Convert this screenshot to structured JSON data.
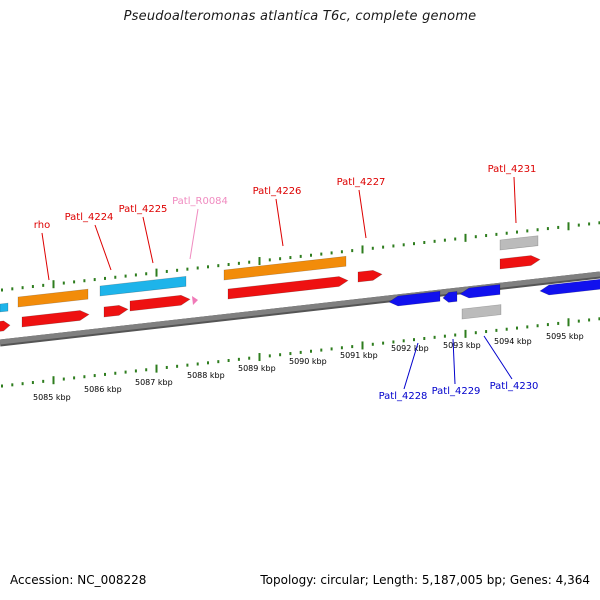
{
  "title": "Pseudoalteromonas atlantica T6c, complete genome",
  "footer": {
    "accession": "Accession: NC_008228",
    "topology": "Topology: circular; Length: 5,187,005 bp; Genes: 4,364"
  },
  "colors": {
    "backbone": "#808080",
    "tick": "#2e7d1e",
    "cds_forward": "#ee1111",
    "cds_reverse": "#1111ee",
    "gene_orange": "#f28c0a",
    "gene_cyan": "#1eb4ea",
    "gene_gray": "#bbbbbb",
    "rna": "#f07ab8",
    "label_forward": "#dd0000",
    "label_reverse": "#0000cc",
    "label_rna": "#f08bc0"
  },
  "scale": {
    "tick_labels": [
      "5085 kbp",
      "5086 kbp",
      "5087 kbp",
      "5088 kbp",
      "5089 kbp",
      "5090 kbp",
      "5091 kbp",
      "5092 kbp",
      "5093 kbp",
      "5094 kbp",
      "5095 kbp"
    ]
  },
  "labels": [
    {
      "text": "rho",
      "kind": "forward"
    },
    {
      "text": "Patl_4224",
      "kind": "forward"
    },
    {
      "text": "Patl_4225",
      "kind": "forward"
    },
    {
      "text": "Patl_R0084",
      "kind": "rna"
    },
    {
      "text": "Patl_4226",
      "kind": "forward"
    },
    {
      "text": "Patl_4227",
      "kind": "forward"
    },
    {
      "text": "Patl_4231",
      "kind": "forward"
    },
    {
      "text": "Patl_4228",
      "kind": "reverse"
    },
    {
      "text": "Patl_4229",
      "kind": "reverse"
    },
    {
      "text": "Patl_4230",
      "kind": "reverse"
    }
  ]
}
